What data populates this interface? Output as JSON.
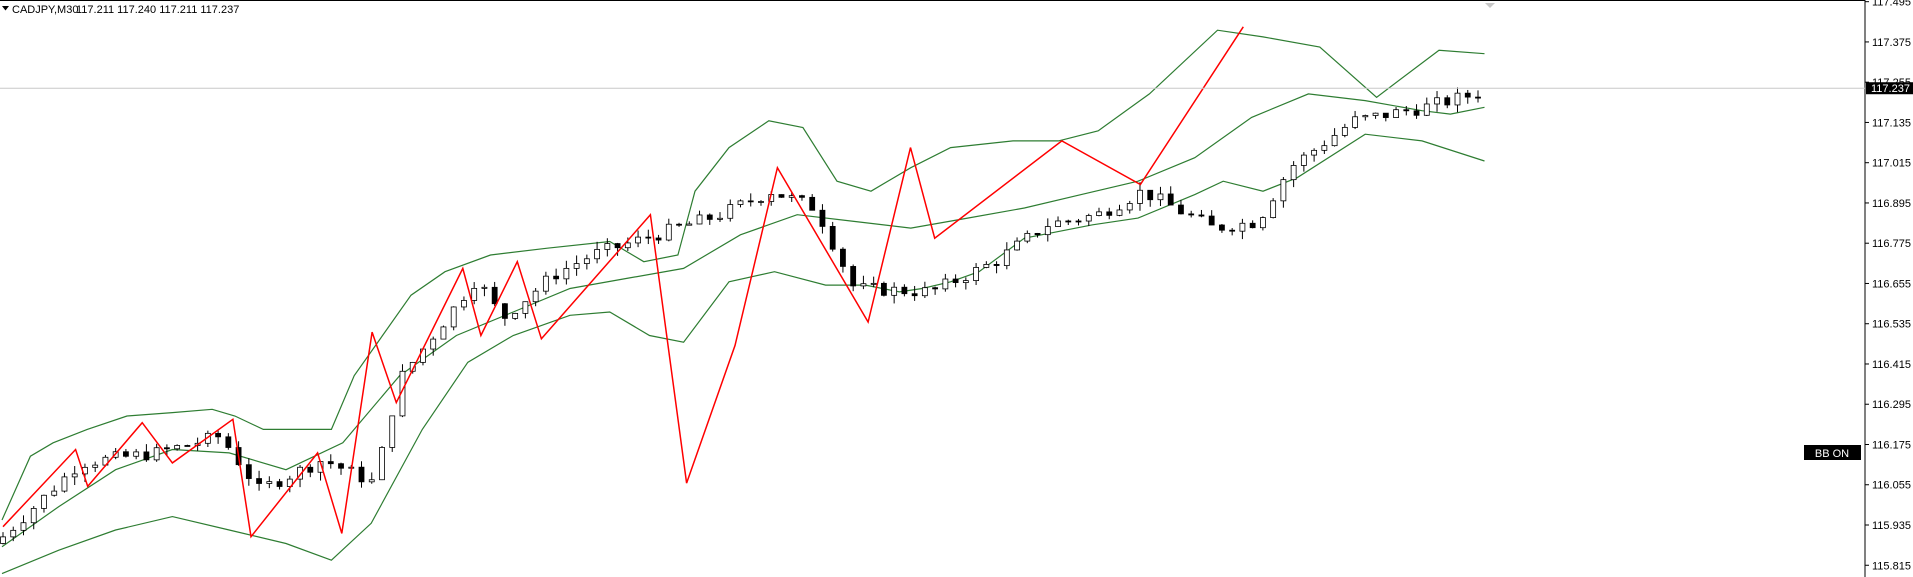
{
  "header": {
    "symbol": "CADJPY,M30",
    "ohlc": "117.211 117.240 117.211 117.237",
    "dropdown_icon": "triangle-down-icon"
  },
  "price_tag": "117.237",
  "badge": "BB ON",
  "colors": {
    "zigzag": "#ff0000",
    "bollinger": "#2e7d32",
    "candle_up": "#ffffff",
    "candle_down": "#000000",
    "current_price_line": "#c8c8c8"
  },
  "chart_data": {
    "type": "candlestick",
    "symbol": "CADJPY",
    "timeframe": "M30",
    "ylim": [
      115.78,
      117.5
    ],
    "y_ticks": [
      "117.495",
      "117.375",
      "117.255",
      "117.135",
      "117.015",
      "116.895",
      "116.775",
      "116.655",
      "116.535",
      "116.415",
      "116.295",
      "116.175",
      "116.055",
      "115.935",
      "115.815"
    ],
    "current_price": 117.237,
    "candle_count": 145,
    "close_anchors": [
      [
        0,
        115.9
      ],
      [
        12,
        116.12
      ],
      [
        24,
        116.15
      ],
      [
        34,
        116.2
      ],
      [
        40,
        116.04
      ],
      [
        50,
        116.13
      ],
      [
        58,
        116.06
      ],
      [
        62,
        116.37
      ],
      [
        74,
        116.67
      ],
      [
        78,
        116.55
      ],
      [
        86,
        116.68
      ],
      [
        92,
        116.74
      ],
      [
        102,
        116.8
      ],
      [
        112,
        116.86
      ],
      [
        120,
        116.93
      ],
      [
        127,
        116.88
      ],
      [
        133,
        116.64
      ],
      [
        145,
        116.63
      ],
      [
        155,
        116.72
      ],
      [
        163,
        116.83
      ],
      [
        171,
        116.86
      ],
      [
        178,
        116.93
      ],
      [
        189,
        116.82
      ],
      [
        196,
        116.84
      ],
      [
        201,
        117.0
      ],
      [
        211,
        117.14
      ],
      [
        222,
        117.18
      ],
      [
        232,
        117.23
      ]
    ],
    "zigzag": [
      [
        0,
        115.93
      ],
      [
        12,
        116.16
      ],
      [
        14,
        116.05
      ],
      [
        23,
        116.24
      ],
      [
        28,
        116.12
      ],
      [
        38,
        116.25
      ],
      [
        41,
        115.9
      ],
      [
        52,
        116.15
      ],
      [
        56,
        115.91
      ],
      [
        61,
        116.51
      ],
      [
        65,
        116.3
      ],
      [
        76,
        116.7
      ],
      [
        79,
        116.5
      ],
      [
        85,
        116.72
      ],
      [
        89,
        116.49
      ],
      [
        107,
        116.86
      ],
      [
        113,
        116.06
      ],
      [
        121,
        116.47
      ],
      [
        128,
        117.0
      ],
      [
        143,
        116.54
      ],
      [
        150,
        117.06
      ],
      [
        154,
        116.79
      ],
      [
        175,
        117.08
      ],
      [
        188,
        116.95
      ],
      [
        205,
        117.42
      ]
    ],
    "bollinger": {
      "upper": [
        [
          0,
          115.95
        ],
        [
          5,
          116.14
        ],
        [
          9,
          116.18
        ],
        [
          15,
          116.22
        ],
        [
          22,
          116.26
        ],
        [
          30,
          116.27
        ],
        [
          37,
          116.28
        ],
        [
          41,
          116.26
        ],
        [
          46,
          116.22
        ],
        [
          58,
          116.22
        ],
        [
          62,
          116.38
        ],
        [
          72,
          116.62
        ],
        [
          78,
          116.69
        ],
        [
          86,
          116.74
        ],
        [
          96,
          116.76
        ],
        [
          107,
          116.78
        ],
        [
          113,
          116.72
        ],
        [
          119,
          116.74
        ],
        [
          122,
          116.93
        ],
        [
          128,
          117.06
        ],
        [
          135,
          117.14
        ],
        [
          141,
          117.12
        ],
        [
          147,
          116.96
        ],
        [
          153,
          116.93
        ],
        [
          160,
          117.0
        ],
        [
          167,
          117.06
        ],
        [
          178,
          117.08
        ],
        [
          186,
          117.08
        ],
        [
          193,
          117.11
        ],
        [
          202,
          117.22
        ],
        [
          214,
          117.41
        ],
        [
          222,
          117.39
        ],
        [
          232,
          117.36
        ],
        [
          242,
          117.21
        ],
        [
          253,
          117.35
        ],
        [
          261,
          117.34
        ]
      ],
      "middle": [
        [
          0,
          115.87
        ],
        [
          10,
          115.99
        ],
        [
          20,
          116.1
        ],
        [
          30,
          116.16
        ],
        [
          40,
          116.15
        ],
        [
          50,
          116.1
        ],
        [
          60,
          116.18
        ],
        [
          70,
          116.38
        ],
        [
          80,
          116.5
        ],
        [
          90,
          116.57
        ],
        [
          100,
          116.64
        ],
        [
          110,
          116.67
        ],
        [
          120,
          116.7
        ],
        [
          130,
          116.8
        ],
        [
          140,
          116.86
        ],
        [
          150,
          116.84
        ],
        [
          160,
          116.82
        ],
        [
          170,
          116.85
        ],
        [
          180,
          116.88
        ],
        [
          190,
          116.92
        ],
        [
          200,
          116.96
        ],
        [
          210,
          117.03
        ],
        [
          220,
          117.15
        ],
        [
          230,
          117.22
        ],
        [
          240,
          117.2
        ],
        [
          250,
          117.17
        ],
        [
          255,
          117.16
        ],
        [
          261,
          117.18
        ]
      ],
      "lower": [
        [
          0,
          115.79
        ],
        [
          10,
          115.86
        ],
        [
          20,
          115.92
        ],
        [
          30,
          115.96
        ],
        [
          40,
          115.92
        ],
        [
          50,
          115.88
        ],
        [
          58,
          115.83
        ],
        [
          65,
          115.94
        ],
        [
          74,
          116.22
        ],
        [
          82,
          116.42
        ],
        [
          90,
          116.5
        ],
        [
          100,
          116.56
        ],
        [
          107,
          116.57
        ],
        [
          114,
          116.5
        ],
        [
          120,
          116.48
        ],
        [
          124,
          116.57
        ],
        [
          128,
          116.66
        ],
        [
          136,
          116.69
        ],
        [
          145,
          116.65
        ],
        [
          152,
          116.65
        ],
        [
          158,
          116.63
        ],
        [
          162,
          116.64
        ],
        [
          167,
          116.66
        ],
        [
          172,
          116.69
        ],
        [
          180,
          116.79
        ],
        [
          192,
          116.83
        ],
        [
          200,
          116.85
        ],
        [
          210,
          116.92
        ],
        [
          215,
          116.96
        ],
        [
          222,
          116.93
        ],
        [
          228,
          116.97
        ],
        [
          240,
          117.1
        ],
        [
          250,
          117.08
        ],
        [
          261,
          117.02
        ]
      ]
    }
  }
}
